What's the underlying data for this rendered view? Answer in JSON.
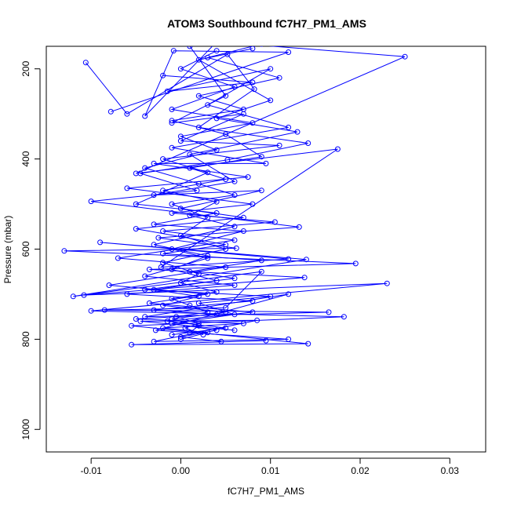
{
  "chart_data": {
    "type": "line",
    "title": "ATOM3 Southbound fC7H7_PM1_AMS",
    "xlabel": "fC7H7_PM1_AMS",
    "ylabel": "Pressure (mbar)",
    "xlim": [
      -0.015,
      0.034
    ],
    "ylim": [
      1050,
      150
    ],
    "y_reversed": true,
    "x_ticks": [
      -0.01,
      0.0,
      0.01,
      0.02,
      0.03
    ],
    "x_tick_labels": [
      "-0.01",
      "0.00",
      "0.01",
      "0.02",
      "0.03"
    ],
    "y_ticks": [
      200,
      400,
      600,
      800,
      1000
    ],
    "y_tick_labels": [
      "200",
      "400",
      "600",
      "800",
      "1000"
    ],
    "grid": false,
    "legend": "none",
    "series_color": "#0000ff",
    "series": [
      {
        "points": [
          [
            -0.0106,
            186
          ],
          [
            -0.006,
            300
          ],
          [
            0.0052,
            168
          ],
          [
            0.0082,
            245
          ],
          [
            0.002,
            330
          ],
          [
            0.0142,
            365
          ],
          [
            0.0052,
            402
          ],
          [
            -0.0045,
            432
          ],
          [
            0.0018,
            470
          ],
          [
            -0.01,
            494
          ],
          [
            0.0132,
            551
          ],
          [
            -0.0025,
            575
          ],
          [
            0.0062,
            598
          ],
          [
            -0.013,
            604
          ],
          [
            0.0195,
            632
          ],
          [
            -0.0035,
            645
          ],
          [
            0.0138,
            663
          ],
          [
            -0.0108,
            702
          ],
          [
            0.023,
            676
          ],
          [
            -0.01,
            737
          ],
          [
            0.0182,
            750
          ],
          [
            -0.0055,
            770
          ],
          [
            0.0142,
            810
          ],
          [
            -0.0055,
            812
          ],
          [
            0.0095,
            803
          ]
        ]
      },
      {
        "points": [
          [
            -0.0078,
            295
          ],
          [
            0.012,
            163
          ],
          [
            -0.0008,
            160
          ],
          [
            -0.004,
            305
          ],
          [
            0.004,
            140
          ],
          [
            0.025,
            173
          ],
          [
            -0.005,
            432
          ],
          [
            0.0175,
            378
          ],
          [
            -0.0022,
            640
          ],
          [
            0.012,
            622
          ],
          [
            -0.009,
            585
          ],
          [
            0.014,
            623
          ],
          [
            -0.012,
            705
          ],
          [
            0.009,
            650
          ],
          [
            0.005,
            730
          ],
          [
            -0.0085,
            735
          ],
          [
            0.0165,
            740
          ],
          [
            -0.004,
            750
          ],
          [
            0.012,
            700
          ],
          [
            -0.0028,
            780
          ],
          [
            0.012,
            800
          ],
          [
            -0.003,
            805
          ],
          [
            0.0085,
            758
          ],
          [
            -0.0045,
            760
          ],
          [
            0.006,
            780
          ]
        ]
      },
      {
        "points": [
          [
            -0.002,
            215
          ],
          [
            0.008,
            230
          ],
          [
            -0.0015,
            250
          ],
          [
            0.01,
            200
          ],
          [
            0.003,
            280
          ],
          [
            0.012,
            330
          ],
          [
            -0.001,
            375
          ],
          [
            0.0095,
            410
          ],
          [
            -0.003,
            410
          ],
          [
            0.0075,
            440
          ],
          [
            -0.006,
            465
          ],
          [
            0.008,
            500
          ],
          [
            -0.001,
            520
          ],
          [
            0.0105,
            540
          ],
          [
            -0.002,
            560
          ],
          [
            0.006,
            580
          ],
          [
            -0.007,
            620
          ],
          [
            0.005,
            640
          ],
          [
            -0.008,
            680
          ],
          [
            0.003,
            700
          ],
          [
            -0.0035,
            720
          ],
          [
            0.008,
            740
          ],
          [
            -0.0015,
            760
          ],
          [
            0.005,
            775
          ],
          [
            -0.001,
            790
          ]
        ]
      },
      {
        "points": [
          [
            0.001,
            150
          ],
          [
            0.005,
            260
          ],
          [
            -0.001,
            320
          ],
          [
            0.007,
            300
          ],
          [
            0.0,
            360
          ],
          [
            0.011,
            370
          ],
          [
            -0.002,
            400
          ],
          [
            0.003,
            430
          ],
          [
            -0.005,
            500
          ],
          [
            0.004,
            520
          ],
          [
            -0.003,
            545
          ],
          [
            0.007,
            560
          ],
          [
            -0.001,
            600
          ],
          [
            0.003,
            620
          ],
          [
            -0.004,
            660
          ],
          [
            0.006,
            680
          ],
          [
            -0.006,
            700
          ],
          [
            0.008,
            715
          ],
          [
            -0.003,
            735
          ],
          [
            0.004,
            745
          ],
          [
            -0.005,
            755
          ],
          [
            0.007,
            765
          ],
          [
            -0.002,
            775
          ],
          [
            0.003,
            785
          ],
          [
            0.0,
            800
          ]
        ]
      },
      {
        "points": [
          [
            0.008,
            155
          ],
          [
            0.002,
            180
          ],
          [
            0.01,
            270
          ],
          [
            0.004,
            310
          ],
          [
            0.013,
            340
          ],
          [
            0.001,
            390
          ],
          [
            0.006,
            450
          ],
          [
            -0.003,
            480
          ],
          [
            0.009,
            470
          ],
          [
            0.0,
            510
          ],
          [
            0.007,
            530
          ],
          [
            -0.005,
            555
          ],
          [
            0.005,
            590
          ],
          [
            -0.002,
            610
          ],
          [
            0.009,
            625
          ],
          [
            0.001,
            650
          ],
          [
            0.006,
            665
          ],
          [
            -0.004,
            690
          ],
          [
            0.01,
            705
          ],
          [
            0.002,
            720
          ],
          [
            0.006,
            745
          ],
          [
            -0.001,
            765
          ],
          [
            0.004,
            780
          ],
          [
            0.0,
            795
          ],
          [
            0.0045,
            805
          ]
        ]
      },
      {
        "points": [
          [
            0.004,
            160
          ],
          [
            0.0,
            200
          ],
          [
            0.006,
            240
          ],
          [
            -0.001,
            290
          ],
          [
            0.008,
            320
          ],
          [
            0.0,
            350
          ],
          [
            0.004,
            380
          ],
          [
            -0.004,
            420
          ],
          [
            0.002,
            455
          ],
          [
            0.006,
            480
          ],
          [
            -0.001,
            500
          ],
          [
            0.003,
            530
          ],
          [
            0.0,
            570
          ],
          [
            0.005,
            600
          ],
          [
            -0.002,
            630
          ],
          [
            0.002,
            655
          ],
          [
            0.0,
            675
          ],
          [
            0.004,
            695
          ],
          [
            -0.001,
            710
          ],
          [
            0.001,
            725
          ],
          [
            0.003,
            740
          ],
          [
            -0.0005,
            750
          ],
          [
            0.002,
            765
          ],
          [
            0.0005,
            775
          ],
          [
            0.0025,
            790
          ]
        ]
      },
      {
        "points": [
          [
            0.009,
            145
          ],
          [
            0.003,
            175
          ],
          [
            0.011,
            220
          ],
          [
            0.002,
            260
          ],
          [
            0.007,
            290
          ],
          [
            -0.001,
            315
          ],
          [
            0.005,
            345
          ],
          [
            0.009,
            395
          ],
          [
            0.001,
            420
          ],
          [
            0.005,
            445
          ],
          [
            -0.002,
            470
          ],
          [
            0.004,
            495
          ],
          [
            0.001,
            525
          ],
          [
            0.006,
            550
          ],
          [
            -0.003,
            590
          ],
          [
            0.003,
            615
          ],
          [
            -0.001,
            645
          ],
          [
            0.004,
            670
          ],
          [
            -0.003,
            690
          ],
          [
            0.002,
            705
          ],
          [
            -0.002,
            725
          ],
          [
            0.005,
            740
          ],
          [
            -0.001,
            755
          ],
          [
            0.002,
            770
          ],
          [
            0.001,
            785
          ]
        ]
      }
    ]
  }
}
